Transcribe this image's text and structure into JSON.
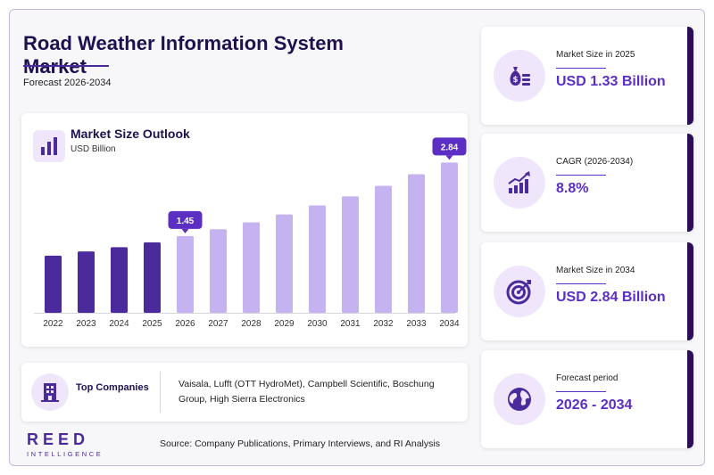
{
  "header": {
    "title": "Road Weather Information System Market",
    "subtitle": "Forecast 2026-2034"
  },
  "chart_card": {
    "title": "Market Size Outlook",
    "unit": "USD Billion",
    "icon": "bar-chart-icon"
  },
  "chart_data": {
    "type": "bar",
    "title": "Market Size Outlook",
    "ylabel": "USD Billion",
    "categories": [
      "2022",
      "2023",
      "2024",
      "2025",
      "2026",
      "2027",
      "2028",
      "2029",
      "2030",
      "2031",
      "2032",
      "2033",
      "2034"
    ],
    "values": [
      1.08,
      1.16,
      1.24,
      1.33,
      1.45,
      1.58,
      1.71,
      1.86,
      2.03,
      2.2,
      2.4,
      2.62,
      2.84
    ],
    "historical_color": "#4b2a9b",
    "forecast_color": "#c4b3f0",
    "forecast_start": "2026",
    "callouts": [
      {
        "category": "2026",
        "label": "1.45"
      },
      {
        "category": "2034",
        "label": "2.84"
      }
    ],
    "ylim": [
      0,
      3.1
    ],
    "grid": false,
    "legend": "none"
  },
  "companies": {
    "label": "Top Companies",
    "icon": "building-icon",
    "text": "Vaisala, Lufft (OTT HydroMet), Campbell Scientific, Boschung Group, High Sierra Electronics"
  },
  "logo": {
    "main": "REED",
    "sub": "INTELLIGENCE"
  },
  "source": "Source: Company Publications, Primary Interviews, and RI Analysis",
  "kpis": [
    {
      "label": "Market Size in 2025",
      "value": "USD 1.33 Billion",
      "icon": "money-bag-icon"
    },
    {
      "label": "CAGR (2026-2034)",
      "value": "8.8%",
      "icon": "growth-chart-icon"
    },
    {
      "label": "Market Size in 2034",
      "value": "USD 2.84 Billion",
      "icon": "target-icon"
    },
    {
      "label": "Forecast period",
      "value": "2026 - 2034",
      "icon": "globe-icon"
    }
  ],
  "colors": {
    "accent": "#5b2fc4",
    "dark": "#2a0e57",
    "title": "#1f1150",
    "light_bg": "#efe6fb"
  }
}
